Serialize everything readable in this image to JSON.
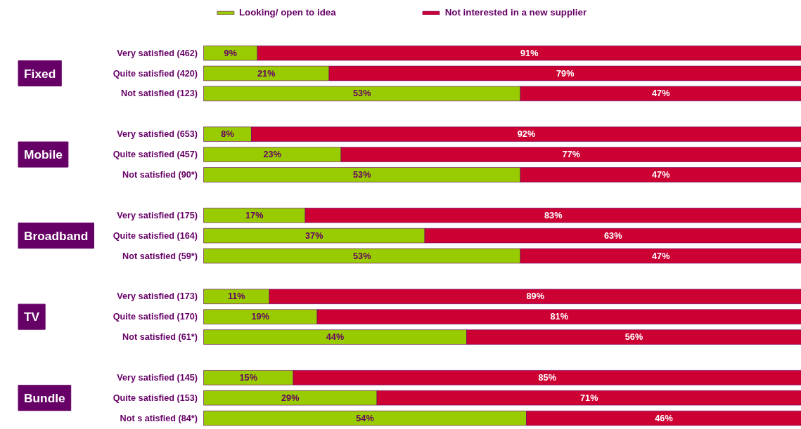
{
  "chart_data": {
    "type": "bar",
    "orientation": "horizontal",
    "stacked": true,
    "categories": [
      "Very satisfied (462)",
      "Quite satisfied (420)",
      "Not satisfied (123)",
      null,
      "Very satisfied (653)",
      "Quite satisfied (457)",
      "Not satisfied (90*)",
      null,
      "Very satisfied (175)",
      "Quite satisfied (164)",
      "Not satisfied (59*)",
      null,
      "Very satisfied (173)",
      "Quite satisfied (170)",
      "Not satisfied (61*)",
      null,
      "Very satisfied (145)",
      "Quite satisfied (153)",
      "Not s atisfied (84*)"
    ],
    "series": [
      {
        "name": "Looking/ open to idea",
        "color": "#99cc00",
        "values": [
          9,
          21,
          53,
          null,
          8,
          23,
          53,
          null,
          17,
          37,
          53,
          null,
          11,
          19,
          44,
          null,
          15,
          29,
          54
        ],
        "value_labels": [
          "9%",
          "21%",
          "53%",
          null,
          "8%",
          "23%",
          "53%",
          null,
          "17%",
          "37%",
          "53%",
          null,
          "11%",
          "19%",
          "44%",
          null,
          "15%",
          "29%",
          "54%"
        ]
      },
      {
        "name": "Not interested in a new supplier",
        "color": "#cc0033",
        "values": [
          91,
          79,
          47,
          null,
          92,
          77,
          47,
          null,
          83,
          63,
          47,
          null,
          89,
          81,
          56,
          null,
          85,
          71,
          46
        ],
        "value_labels": [
          "91%",
          "79%",
          "47%",
          null,
          "92%",
          "77%",
          "47%",
          null,
          "83%",
          "63%",
          "47%",
          null,
          "89%",
          "81%",
          "56%",
          null,
          "85%",
          "71%",
          "46%"
        ]
      }
    ],
    "annotations": [
      "Fixed",
      "Mobile",
      "Broadband",
      "TV",
      "Bundle"
    ],
    "legend": "top",
    "grid": false
  }
}
